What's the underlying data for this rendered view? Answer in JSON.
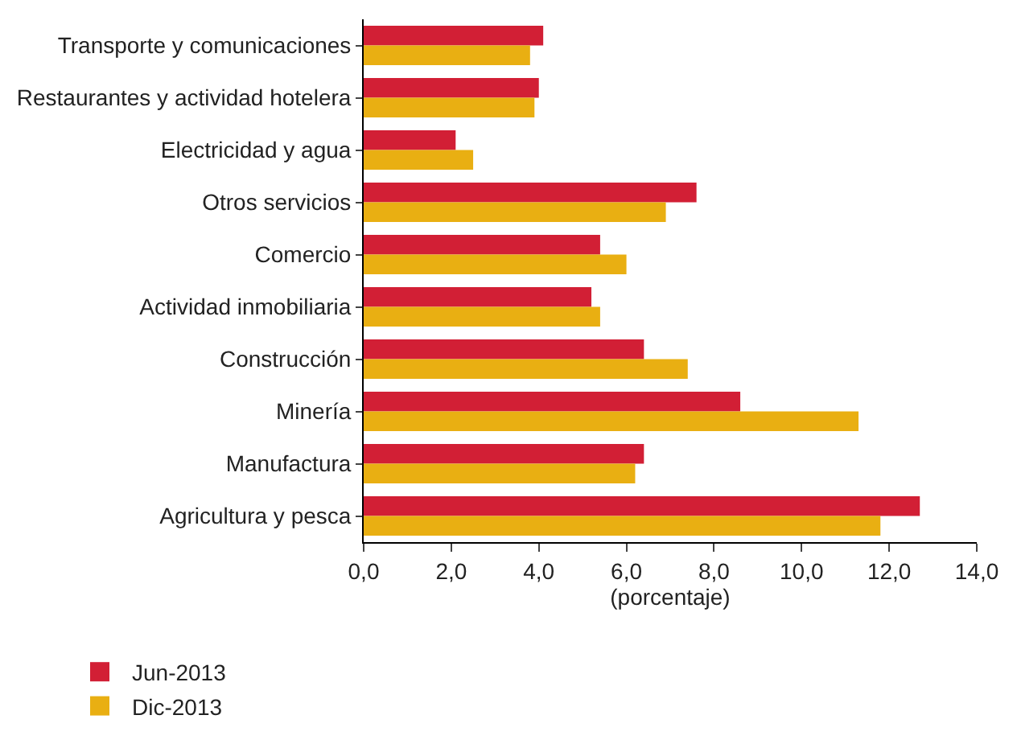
{
  "chart_data": {
    "type": "bar",
    "orientation": "horizontal",
    "xlabel": "(porcentaje)",
    "categories": [
      "Transporte y comunicaciones",
      "Restaurantes y actividad hotelera",
      "Electricidad y agua",
      "Otros servicios",
      "Comercio",
      "Actividad inmobiliaria",
      "Construcción",
      "Minería",
      "Manufactura",
      "Agricultura y pesca"
    ],
    "series": [
      {
        "name": "Jun-2013",
        "color": "#d21f35",
        "values": [
          4.1,
          4.0,
          2.1,
          7.6,
          5.4,
          5.2,
          6.4,
          8.6,
          6.4,
          12.7
        ]
      },
      {
        "name": "Dic-2013",
        "color": "#e9af12",
        "values": [
          3.8,
          3.9,
          2.5,
          6.9,
          6.0,
          5.4,
          7.4,
          11.3,
          6.2,
          11.8
        ]
      }
    ],
    "xlim": [
      0,
      14
    ],
    "xticks": [
      {
        "value": 0,
        "label": "0,0"
      },
      {
        "value": 2,
        "label": "2,0"
      },
      {
        "value": 4,
        "label": "4,0"
      },
      {
        "value": 6,
        "label": "6,0"
      },
      {
        "value": 8,
        "label": "8,0"
      },
      {
        "value": 10,
        "label": "10,0"
      },
      {
        "value": 12,
        "label": "12,0"
      },
      {
        "value": 14,
        "label": "14,0"
      }
    ],
    "grid": false,
    "legend": "bottom"
  }
}
